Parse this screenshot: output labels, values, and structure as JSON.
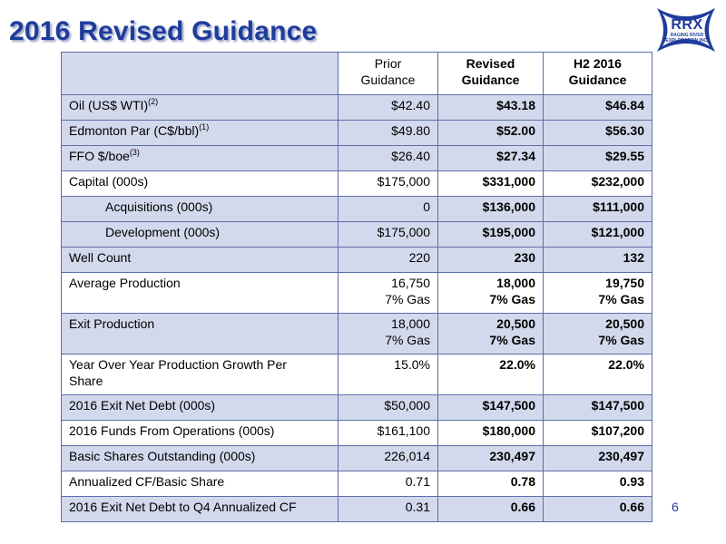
{
  "slide": {
    "title": "2016 Revised Guidance",
    "page_number": "6"
  },
  "logo": {
    "icon": "rrx-cross-logo",
    "main": "RRX",
    "sub_line1": "RAGING RIVER",
    "sub_line2": "EXPLORATION INC.",
    "color": "#1f3c9c"
  },
  "colors": {
    "title": "#1f3c9c",
    "row_shade": "#d3d9ec",
    "border": "#5b6ea8"
  },
  "table": {
    "headers": {
      "prior_line1": "Prior",
      "prior_line2": "Guidance",
      "revised_line1": "Revised",
      "revised_line2": "Guidance",
      "h2_line1": "H2 2016",
      "h2_line2": "Guidance"
    },
    "rows": [
      {
        "label": "Oil (US$ WTI)",
        "sup": "(2)",
        "prior": "$42.40",
        "revised": "$43.18",
        "h2": "$46.84"
      },
      {
        "label": "Edmonton Par (C$/bbl)",
        "sup": "(1)",
        "prior": "$49.80",
        "revised": "$52.00",
        "h2": "$56.30"
      },
      {
        "label": "FFO $/boe",
        "sup": "(3)",
        "prior": "$26.40",
        "revised": "$27.34",
        "h2": "$29.55"
      },
      {
        "label": "Capital (000s)",
        "prior": "$175,000",
        "revised": "$331,000",
        "h2": "$232,000"
      },
      {
        "label": "Acquisitions (000s)",
        "prior": "0",
        "revised": "$136,000",
        "h2": "$111,000"
      },
      {
        "label": "Development (000s)",
        "prior": "$175,000",
        "revised": "$195,000",
        "h2": "$121,000"
      },
      {
        "label": "Well Count",
        "prior": "220",
        "revised": "230",
        "h2": "132"
      },
      {
        "label": "Average Production",
        "prior": "16,750",
        "prior2": "7% Gas",
        "revised": "18,000",
        "revised2": "7% Gas",
        "h2": "19,750",
        "h22": "7% Gas"
      },
      {
        "label": "Exit Production",
        "prior": "18,000",
        "prior2": "7% Gas",
        "revised": "20,500",
        "revised2": "7% Gas",
        "h2": "20,500",
        "h22": "7% Gas"
      },
      {
        "label": "Year Over Year Production Growth Per",
        "label2": "Share",
        "prior": "15.0%",
        "revised": "22.0%",
        "h2": "22.0%"
      },
      {
        "label": "2016 Exit Net Debt (000s)",
        "prior": "$50,000",
        "revised": "$147,500",
        "h2": "$147,500"
      },
      {
        "label": "2016 Funds From Operations (000s)",
        "prior": "$161,100",
        "revised": "$180,000",
        "h2": "$107,200"
      },
      {
        "label": "Basic Shares Outstanding (000s)",
        "prior": "226,014",
        "revised": "230,497",
        "h2": "230,497"
      },
      {
        "label": "Annualized CF/Basic Share",
        "prior": "0.71",
        "revised": "0.78",
        "h2": "0.93"
      },
      {
        "label": "2016 Exit Net Debt to Q4 Annualized CF",
        "prior": "0.31",
        "revised": "0.66",
        "h2": "0.66"
      }
    ]
  }
}
